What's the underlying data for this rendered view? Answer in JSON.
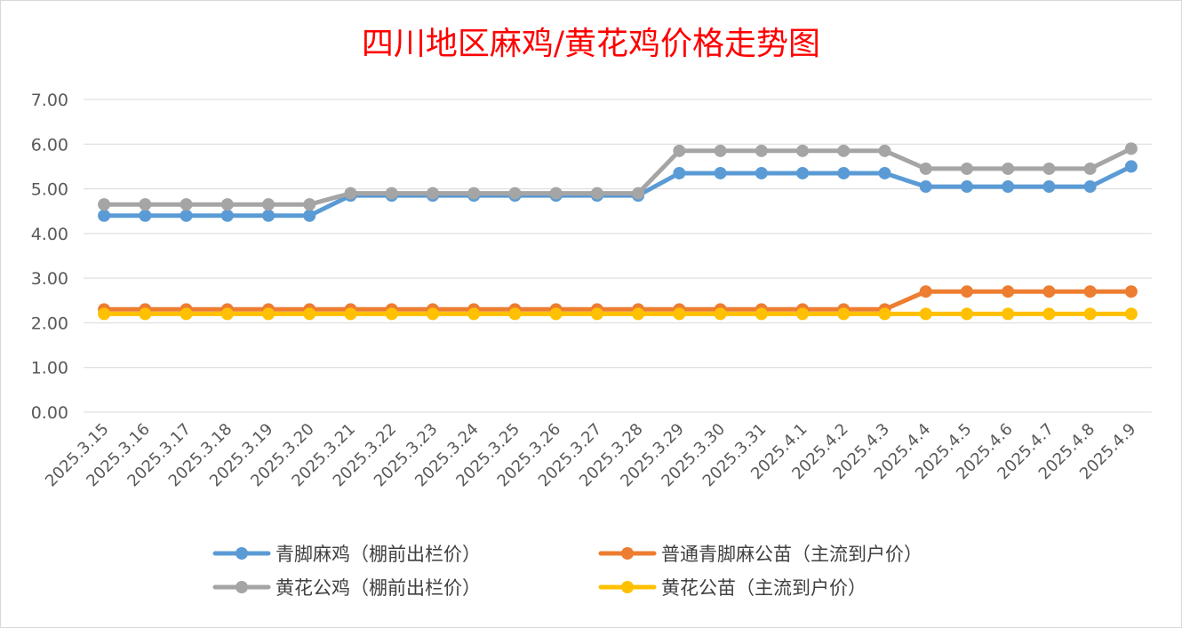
{
  "chart_data": {
    "type": "line",
    "title": "四川地区麻鸡/黄花鸡价格走势图",
    "xlabel": "",
    "ylabel": "",
    "ylim": [
      0,
      7
    ],
    "yticks": [
      "0.00",
      "1.00",
      "2.00",
      "3.00",
      "4.00",
      "5.00",
      "6.00",
      "7.00"
    ],
    "grid": true,
    "legend_position": "bottom",
    "categories": [
      "2025.3.15",
      "2025.3.16",
      "2025.3.17",
      "2025.3.18",
      "2025.3.19",
      "2025.3.20",
      "2025.3.21",
      "2025.3.22",
      "2025.3.23",
      "2025.3.24",
      "2025.3.25",
      "2025.3.26",
      "2025.3.27",
      "2025.3.28",
      "2025.3.29",
      "2025.3.30",
      "2025.3.31",
      "2025.4.1",
      "2025.4.2",
      "2025.4.3",
      "2025.4.4",
      "2025.4.5",
      "2025.4.6",
      "2025.4.7",
      "2025.4.8",
      "2025.4.9"
    ],
    "series": [
      {
        "name": "青脚麻鸡（棚前出栏价）",
        "color": "#5b9bd5",
        "values": [
          4.4,
          4.4,
          4.4,
          4.4,
          4.4,
          4.4,
          4.85,
          4.85,
          4.85,
          4.85,
          4.85,
          4.85,
          4.85,
          4.85,
          5.35,
          5.35,
          5.35,
          5.35,
          5.35,
          5.35,
          5.05,
          5.05,
          5.05,
          5.05,
          5.05,
          5.5
        ]
      },
      {
        "name": "普通青脚麻公苗（主流到户价）",
        "color": "#ed7d31",
        "values": [
          2.3,
          2.3,
          2.3,
          2.3,
          2.3,
          2.3,
          2.3,
          2.3,
          2.3,
          2.3,
          2.3,
          2.3,
          2.3,
          2.3,
          2.3,
          2.3,
          2.3,
          2.3,
          2.3,
          2.3,
          2.7,
          2.7,
          2.7,
          2.7,
          2.7,
          2.7
        ]
      },
      {
        "name": "黄花公鸡（棚前出栏价）",
        "color": "#a5a5a5",
        "values": [
          4.65,
          4.65,
          4.65,
          4.65,
          4.65,
          4.65,
          4.9,
          4.9,
          4.9,
          4.9,
          4.9,
          4.9,
          4.9,
          4.9,
          5.85,
          5.85,
          5.85,
          5.85,
          5.85,
          5.85,
          5.45,
          5.45,
          5.45,
          5.45,
          5.45,
          5.9
        ]
      },
      {
        "name": "黄花公苗（主流到户价）",
        "color": "#ffc000",
        "values": [
          2.2,
          2.2,
          2.2,
          2.2,
          2.2,
          2.2,
          2.2,
          2.2,
          2.2,
          2.2,
          2.2,
          2.2,
          2.2,
          2.2,
          2.2,
          2.2,
          2.2,
          2.2,
          2.2,
          2.2,
          2.2,
          2.2,
          2.2,
          2.2,
          2.2,
          2.2
        ]
      }
    ],
    "draw_order": [
      1,
      3,
      0,
      2
    ]
  }
}
